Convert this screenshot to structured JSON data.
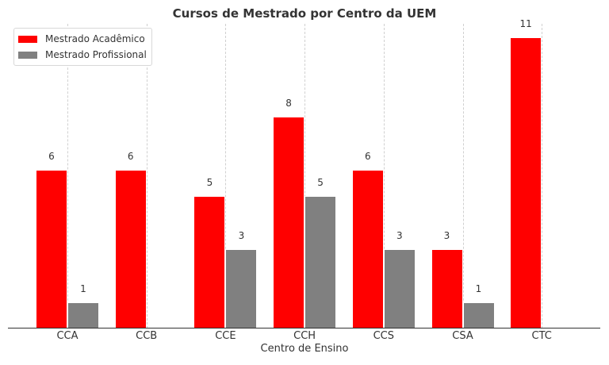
{
  "chart_data": {
    "type": "bar",
    "title": "Cursos de Mestrado por Centro da UEM",
    "xlabel": "Centro de Ensino",
    "ylabel": "",
    "categories": [
      "CCA",
      "CCB",
      "CCE",
      "CCH",
      "CCS",
      "CSA",
      "CTC"
    ],
    "series": [
      {
        "name": "Mestrado Acadêmico",
        "color": "#ff0000",
        "values": [
          6,
          6,
          5,
          8,
          6,
          3,
          11
        ]
      },
      {
        "name": "Mestrado Profissional",
        "color": "#808080",
        "values": [
          1,
          0,
          3,
          5,
          3,
          1,
          0
        ]
      }
    ],
    "data_labels": {
      "academico": [
        "6",
        "6",
        "5",
        "8",
        "6",
        "3",
        "11"
      ],
      "profissional": [
        "1",
        "",
        "3",
        "5",
        "3",
        "1",
        ""
      ]
    },
    "ylim": [
      0,
      11.5
    ],
    "grid": "vertical dashed",
    "legend_position": "upper left"
  }
}
